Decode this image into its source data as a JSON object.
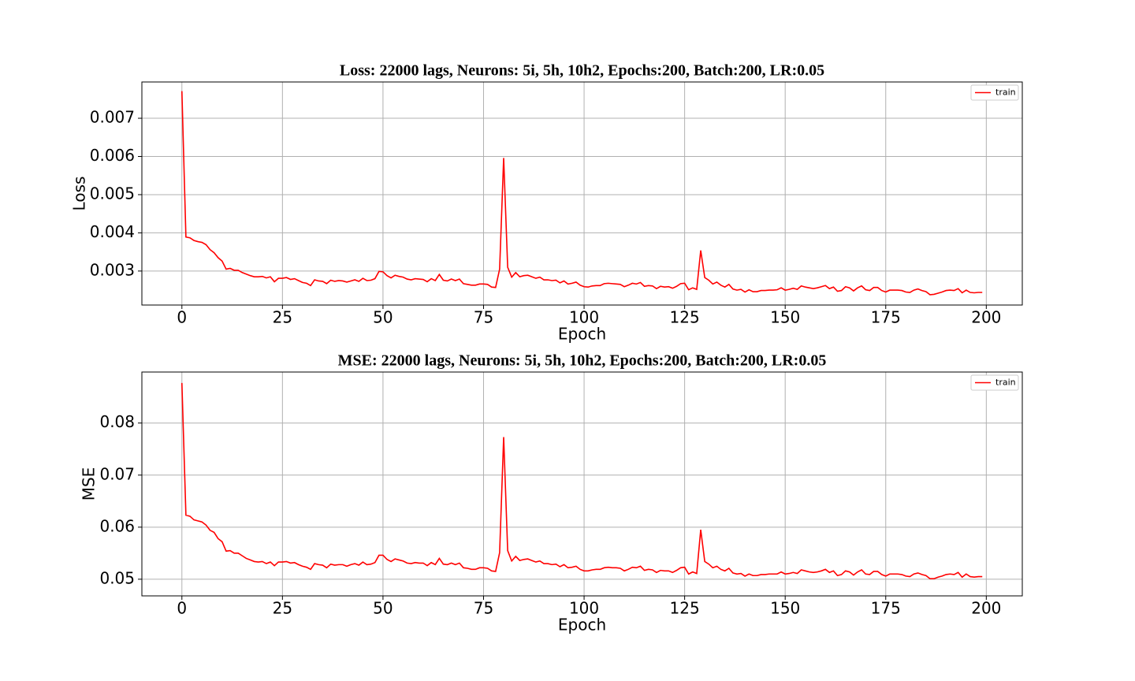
{
  "chart_data": [
    {
      "type": "line",
      "title": "Loss: 22000 lags, Neurons: 5i, 5h, 10h2, Epochs:200, Batch:200, LR:0.05",
      "xlabel": "Epoch",
      "ylabel": "Loss",
      "x": [
        0,
        1,
        2,
        3,
        4,
        5,
        6,
        7,
        8,
        9,
        10,
        11,
        12,
        13,
        14,
        15,
        16,
        17,
        18,
        19,
        20,
        21,
        22,
        23,
        24,
        25,
        26,
        27,
        28,
        29,
        30,
        31,
        32,
        33,
        34,
        35,
        36,
        37,
        38,
        39,
        40,
        41,
        42,
        43,
        44,
        45,
        46,
        47,
        48,
        49,
        50,
        51,
        52,
        53,
        54,
        55,
        56,
        57,
        58,
        59,
        60,
        61,
        62,
        63,
        64,
        65,
        66,
        67,
        68,
        69,
        70,
        71,
        72,
        73,
        74,
        75,
        76,
        77,
        78,
        79,
        80,
        81,
        82,
        83,
        84,
        85,
        86,
        87,
        88,
        89,
        90,
        91,
        92,
        93,
        94,
        95,
        96,
        97,
        98,
        99,
        100,
        101,
        102,
        103,
        104,
        105,
        106,
        107,
        108,
        109,
        110,
        111,
        112,
        113,
        114,
        115,
        116,
        117,
        118,
        119,
        120,
        121,
        122,
        123,
        124,
        125,
        126,
        127,
        128,
        129,
        130,
        131,
        132,
        133,
        134,
        135,
        136,
        137,
        138,
        139,
        140,
        141,
        142,
        143,
        144,
        145,
        146,
        147,
        148,
        149,
        150,
        151,
        152,
        153,
        154,
        155,
        156,
        157,
        158,
        159,
        160,
        161,
        162,
        163,
        164,
        165,
        166,
        167,
        168,
        169,
        170,
        171,
        172,
        173,
        174,
        175,
        176,
        177,
        178,
        179,
        180,
        181,
        182,
        183,
        184,
        185,
        186,
        187,
        188,
        189,
        190,
        191,
        192,
        193,
        194,
        195,
        196,
        197,
        198,
        199
      ],
      "series": [
        {
          "name": "train",
          "color": "#ff0000",
          "values": [
            0.00771,
            0.00389,
            0.00387,
            0.0038,
            0.00377,
            0.00375,
            0.00369,
            0.00356,
            0.00348,
            0.00335,
            0.00326,
            0.00305,
            0.00307,
            0.00302,
            0.00302,
            0.00296,
            0.00292,
            0.00288,
            0.00285,
            0.00285,
            0.00286,
            0.00282,
            0.00285,
            0.00272,
            0.00281,
            0.00281,
            0.00283,
            0.00278,
            0.0028,
            0.00275,
            0.0027,
            0.00268,
            0.00262,
            0.00277,
            0.00274,
            0.00273,
            0.00267,
            0.00276,
            0.00273,
            0.00275,
            0.00274,
            0.00271,
            0.00274,
            0.00277,
            0.00273,
            0.00281,
            0.00275,
            0.00276,
            0.0028,
            0.00299,
            0.00298,
            0.00288,
            0.00282,
            0.00289,
            0.00286,
            0.00284,
            0.00279,
            0.00277,
            0.0028,
            0.00279,
            0.00278,
            0.00272,
            0.0028,
            0.00275,
            0.00291,
            0.00276,
            0.00274,
            0.00279,
            0.00275,
            0.00279,
            0.00267,
            0.00265,
            0.00263,
            0.00263,
            0.00266,
            0.00266,
            0.00265,
            0.00258,
            0.00257,
            0.00305,
            0.00596,
            0.0031,
            0.00284,
            0.00296,
            0.00285,
            0.00288,
            0.00289,
            0.00285,
            0.00281,
            0.00284,
            0.00277,
            0.00277,
            0.00275,
            0.00276,
            0.00269,
            0.00274,
            0.00266,
            0.00268,
            0.00271,
            0.00263,
            0.00259,
            0.00258,
            0.00261,
            0.00262,
            0.00262,
            0.00267,
            0.00268,
            0.00267,
            0.00266,
            0.00265,
            0.00259,
            0.00263,
            0.00268,
            0.00266,
            0.0027,
            0.0026,
            0.00262,
            0.00261,
            0.00254,
            0.0026,
            0.00258,
            0.00259,
            0.00255,
            0.0026,
            0.00267,
            0.00268,
            0.00251,
            0.00256,
            0.00252,
            0.00354,
            0.00283,
            0.00276,
            0.00266,
            0.00271,
            0.00263,
            0.00258,
            0.00265,
            0.00253,
            0.0025,
            0.00252,
            0.00245,
            0.00251,
            0.00246,
            0.00246,
            0.00249,
            0.00249,
            0.0025,
            0.0025,
            0.00251,
            0.00256,
            0.0025,
            0.00252,
            0.00255,
            0.00252,
            0.00261,
            0.00258,
            0.00256,
            0.00254,
            0.00256,
            0.00259,
            0.00262,
            0.00254,
            0.00258,
            0.00247,
            0.00249,
            0.00259,
            0.00256,
            0.00248,
            0.00256,
            0.00261,
            0.00251,
            0.00249,
            0.00257,
            0.00257,
            0.00249,
            0.00245,
            0.0025,
            0.0025,
            0.0025,
            0.00249,
            0.00245,
            0.00244,
            0.0025,
            0.00253,
            0.00249,
            0.00246,
            0.00238,
            0.00239,
            0.00242,
            0.00245,
            0.00249,
            0.0025,
            0.00249,
            0.00254,
            0.00243,
            0.0025,
            0.00244,
            0.00243,
            0.00244,
            0.00244
          ]
        }
      ],
      "xlim": [
        -9.95,
        208.95
      ],
      "ylim": [
        0.00211,
        0.00795
      ],
      "xticks": [
        0,
        25,
        50,
        75,
        100,
        125,
        150,
        175,
        200
      ],
      "yticks": [
        0.003,
        0.004,
        0.005,
        0.006,
        0.007
      ],
      "grid": true,
      "legend": "upper right"
    },
    {
      "type": "line",
      "title": "MSE: 22000 lags, Neurons: 5i, 5h, 10h2, Epochs:200, Batch:200, LR:0.05",
      "xlabel": "Epoch",
      "ylabel": "MSE",
      "x": [
        0,
        1,
        2,
        3,
        4,
        5,
        6,
        7,
        8,
        9,
        10,
        11,
        12,
        13,
        14,
        15,
        16,
        17,
        18,
        19,
        20,
        21,
        22,
        23,
        24,
        25,
        26,
        27,
        28,
        29,
        30,
        31,
        32,
        33,
        34,
        35,
        36,
        37,
        38,
        39,
        40,
        41,
        42,
        43,
        44,
        45,
        46,
        47,
        48,
        49,
        50,
        51,
        52,
        53,
        54,
        55,
        56,
        57,
        58,
        59,
        60,
        61,
        62,
        63,
        64,
        65,
        66,
        67,
        68,
        69,
        70,
        71,
        72,
        73,
        74,
        75,
        76,
        77,
        78,
        79,
        80,
        81,
        82,
        83,
        84,
        85,
        86,
        87,
        88,
        89,
        90,
        91,
        92,
        93,
        94,
        95,
        96,
        97,
        98,
        99,
        100,
        101,
        102,
        103,
        104,
        105,
        106,
        107,
        108,
        109,
        110,
        111,
        112,
        113,
        114,
        115,
        116,
        117,
        118,
        119,
        120,
        121,
        122,
        123,
        124,
        125,
        126,
        127,
        128,
        129,
        130,
        131,
        132,
        133,
        134,
        135,
        136,
        137,
        138,
        139,
        140,
        141,
        142,
        143,
        144,
        145,
        146,
        147,
        148,
        149,
        150,
        151,
        152,
        153,
        154,
        155,
        156,
        157,
        158,
        159,
        160,
        161,
        162,
        163,
        164,
        165,
        166,
        167,
        168,
        169,
        170,
        171,
        172,
        173,
        174,
        175,
        176,
        177,
        178,
        179,
        180,
        181,
        182,
        183,
        184,
        185,
        186,
        187,
        188,
        189,
        190,
        191,
        192,
        193,
        194,
        195,
        196,
        197,
        198,
        199
      ],
      "series": [
        {
          "name": "train",
          "color": "#ff0000",
          "values": [
            0.0877,
            0.0623,
            0.0621,
            0.0614,
            0.0612,
            0.061,
            0.0604,
            0.0594,
            0.059,
            0.0578,
            0.0572,
            0.0554,
            0.0555,
            0.055,
            0.055,
            0.0545,
            0.054,
            0.0537,
            0.0534,
            0.0533,
            0.0534,
            0.053,
            0.0533,
            0.0526,
            0.0533,
            0.0533,
            0.0534,
            0.0531,
            0.0532,
            0.0528,
            0.0525,
            0.0523,
            0.0519,
            0.053,
            0.0528,
            0.0527,
            0.0522,
            0.0529,
            0.0527,
            0.0528,
            0.0528,
            0.0525,
            0.0528,
            0.053,
            0.0527,
            0.0533,
            0.0528,
            0.0529,
            0.0532,
            0.0546,
            0.0546,
            0.0538,
            0.0534,
            0.0539,
            0.0537,
            0.0535,
            0.0531,
            0.053,
            0.0532,
            0.0531,
            0.0531,
            0.0526,
            0.0532,
            0.0528,
            0.054,
            0.0529,
            0.0528,
            0.0531,
            0.0528,
            0.0531,
            0.0522,
            0.0521,
            0.0519,
            0.0519,
            0.0522,
            0.0522,
            0.0521,
            0.0516,
            0.0515,
            0.0551,
            0.0773,
            0.0555,
            0.0535,
            0.0544,
            0.0536,
            0.0538,
            0.0539,
            0.0536,
            0.0533,
            0.0535,
            0.053,
            0.053,
            0.0528,
            0.0529,
            0.0524,
            0.0528,
            0.0522,
            0.0523,
            0.0525,
            0.0519,
            0.0516,
            0.0516,
            0.0518,
            0.0519,
            0.0519,
            0.0522,
            0.0523,
            0.0522,
            0.0522,
            0.0521,
            0.0516,
            0.0519,
            0.0523,
            0.0522,
            0.0525,
            0.0517,
            0.0519,
            0.0518,
            0.0513,
            0.0517,
            0.0516,
            0.0516,
            0.0513,
            0.0517,
            0.0522,
            0.0523,
            0.051,
            0.0514,
            0.0511,
            0.0595,
            0.0534,
            0.0529,
            0.0522,
            0.0525,
            0.0519,
            0.0516,
            0.0521,
            0.0512,
            0.051,
            0.0511,
            0.0506,
            0.051,
            0.0507,
            0.0507,
            0.0509,
            0.0509,
            0.051,
            0.051,
            0.051,
            0.0514,
            0.051,
            0.0511,
            0.0513,
            0.0511,
            0.0518,
            0.0516,
            0.0514,
            0.0513,
            0.0514,
            0.0516,
            0.0519,
            0.0513,
            0.0516,
            0.0507,
            0.0509,
            0.0516,
            0.0514,
            0.0508,
            0.0514,
            0.0518,
            0.051,
            0.0509,
            0.0515,
            0.0515,
            0.0509,
            0.0506,
            0.051,
            0.051,
            0.051,
            0.0509,
            0.0506,
            0.0505,
            0.051,
            0.0512,
            0.0509,
            0.0507,
            0.0501,
            0.0501,
            0.0504,
            0.0506,
            0.0509,
            0.051,
            0.0509,
            0.0513,
            0.0504,
            0.051,
            0.0505,
            0.0504,
            0.0505,
            0.0505
          ]
        }
      ],
      "xlim": [
        -9.95,
        208.95
      ],
      "ylim": [
        0.0468,
        0.0898
      ],
      "xticks": [
        0,
        25,
        50,
        75,
        100,
        125,
        150,
        175,
        200
      ],
      "yticks": [
        0.05,
        0.06,
        0.07,
        0.08
      ],
      "grid": true,
      "legend": "upper right"
    }
  ]
}
